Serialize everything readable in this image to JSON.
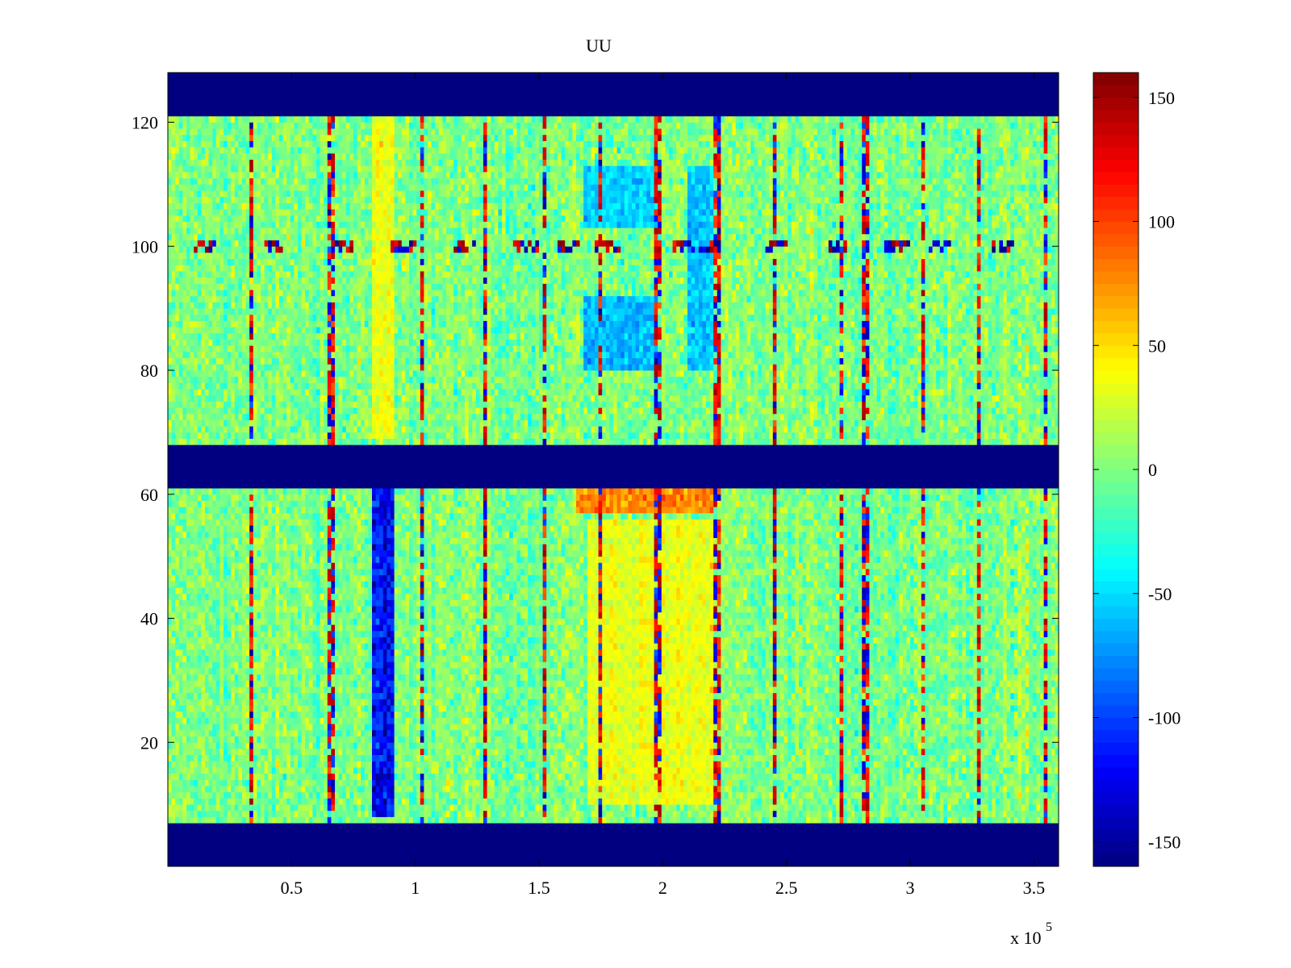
{
  "chart_data": {
    "type": "heatmap",
    "title": "UU",
    "xlabel": "",
    "ylabel": "",
    "x_exponent_label": "x 10",
    "x_exponent_power": "5",
    "xlim": [
      0,
      3.6
    ],
    "ylim": [
      0,
      128
    ],
    "clim": [
      -160,
      160
    ],
    "colormap": "jet",
    "x_ticks": [
      {
        "value": 0.5,
        "label": "0.5"
      },
      {
        "value": 1.0,
        "label": "1"
      },
      {
        "value": 1.5,
        "label": "1.5"
      },
      {
        "value": 2.0,
        "label": "2"
      },
      {
        "value": 2.5,
        "label": "2.5"
      },
      {
        "value": 3.0,
        "label": "3"
      },
      {
        "value": 3.5,
        "label": "3.5"
      }
    ],
    "y_ticks": [
      {
        "value": 20,
        "label": "20"
      },
      {
        "value": 40,
        "label": "40"
      },
      {
        "value": 60,
        "label": "60"
      },
      {
        "value": 80,
        "label": "80"
      },
      {
        "value": 100,
        "label": "100"
      },
      {
        "value": 120,
        "label": "120"
      }
    ],
    "colorbar_ticks": [
      {
        "value": 150,
        "label": "150"
      },
      {
        "value": 100,
        "label": "100"
      },
      {
        "value": 50,
        "label": "50"
      },
      {
        "value": 0,
        "label": "0"
      },
      {
        "value": -50,
        "label": "-50"
      },
      {
        "value": -100,
        "label": "-100"
      },
      {
        "value": -150,
        "label": "-150"
      }
    ],
    "masked_value": -160,
    "masked_row_ranges": [
      [
        0,
        7
      ],
      [
        61,
        68
      ],
      [
        121,
        128
      ]
    ],
    "background_value": 0,
    "features": [
      {
        "x_range": [
          0.82,
          0.92
        ],
        "y_range": [
          8,
          61
        ],
        "value": -130
      },
      {
        "x_range": [
          0.82,
          0.92
        ],
        "y_range": [
          69,
          121
        ],
        "value": 35
      },
      {
        "x_range": [
          1.68,
          1.98
        ],
        "y_range": [
          103,
          113
        ],
        "value": -55
      },
      {
        "x_range": [
          1.68,
          1.98
        ],
        "y_range": [
          80,
          92
        ],
        "value": -65
      },
      {
        "x_range": [
          2.1,
          2.2
        ],
        "y_range": [
          80,
          113
        ],
        "value": -60
      },
      {
        "x_range": [
          1.65,
          2.2
        ],
        "y_range": [
          57,
          61
        ],
        "value": 80
      },
      {
        "x_range": [
          1.7,
          2.2
        ],
        "y_range": [
          10,
          56
        ],
        "value": 35
      }
    ],
    "vertical_streak_x": [
      0.34,
      0.66,
      1.03,
      1.28,
      1.52,
      1.75,
      1.98,
      2.22,
      2.45,
      2.72,
      2.82,
      3.05,
      3.28,
      3.55
    ],
    "row_100_bursts_x": [
      0.15,
      0.42,
      0.7,
      0.95,
      1.2,
      1.45,
      1.62,
      1.78,
      2.08,
      2.2,
      2.45,
      2.72,
      2.95,
      3.12,
      3.38
    ]
  }
}
